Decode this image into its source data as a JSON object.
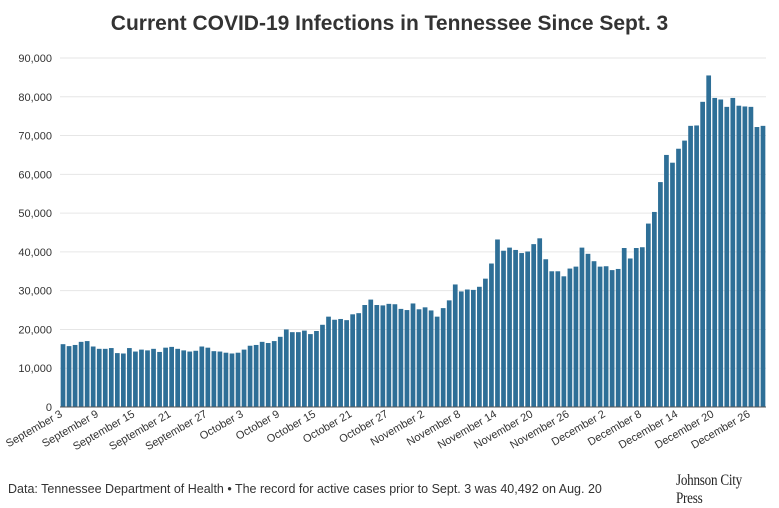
{
  "chart_data": {
    "type": "bar",
    "title": "Current COVID-19 Infections in Tennessee Since Sept. 3",
    "xlabel": "",
    "ylabel": "",
    "ylim": [
      0,
      90000
    ],
    "yticks": [
      0,
      10000,
      20000,
      30000,
      40000,
      50000,
      60000,
      70000,
      80000,
      90000
    ],
    "ytick_labels": [
      "0",
      "10,000",
      "20,000",
      "30,000",
      "40,000",
      "50,000",
      "60,000",
      "70,000",
      "80,000",
      "90,000"
    ],
    "xtick_labels": [
      "September 3",
      "September 9",
      "September 15",
      "September 21",
      "September 27",
      "October 3",
      "October 9",
      "October 15",
      "October 21",
      "October 27",
      "November 2",
      "November 8",
      "November 14",
      "November 20",
      "November 26",
      "December 2",
      "December 8",
      "December 14",
      "December 20",
      "December 26"
    ],
    "bar_color": "#2e6f97",
    "values": [
      16200,
      15700,
      16000,
      16800,
      17000,
      15600,
      15000,
      15000,
      15200,
      13900,
      13800,
      15200,
      14300,
      14800,
      14600,
      15000,
      14200,
      15300,
      15500,
      15000,
      14600,
      14300,
      14500,
      15600,
      15300,
      14400,
      14300,
      14000,
      13800,
      14000,
      14800,
      15800,
      16000,
      16800,
      16500,
      17000,
      18100,
      20000,
      19300,
      19300,
      19700,
      18800,
      19600,
      21200,
      23300,
      22500,
      22700,
      22400,
      23900,
      24200,
      26300,
      27700,
      26300,
      26200,
      26600,
      26500,
      25300,
      25000,
      26700,
      25200,
      25700,
      24900,
      23300,
      25500,
      27500,
      31600,
      29800,
      30300,
      30200,
      31000,
      33100,
      37000,
      43200,
      40300,
      41100,
      40500,
      39700,
      40100,
      42000,
      43500,
      38100,
      35000,
      35000,
      33700,
      35700,
      36200,
      41100,
      39500,
      37600,
      36200,
      36300,
      35300,
      35600,
      41000,
      38300,
      41000,
      41200,
      47300,
      50300,
      58000,
      65000,
      63000,
      66600,
      68700,
      72500,
      72600,
      78700,
      85500,
      79700,
      79300,
      77400,
      79700,
      77700,
      77500,
      77400,
      72200,
      72500
    ]
  },
  "footer": {
    "source": "Data: Tennessee Department of Health • The record for active cases prior to Sept. 3 was 40,492 on Aug. 20",
    "brand": "Johnson City Press"
  }
}
